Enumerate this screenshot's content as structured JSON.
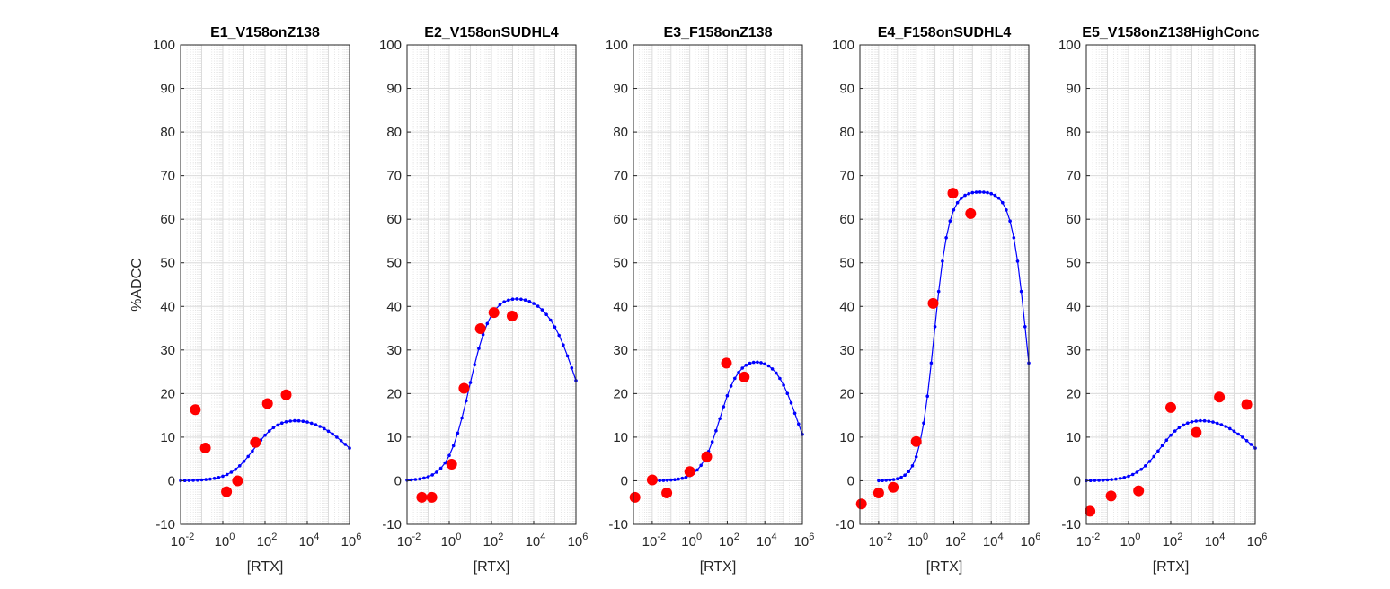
{
  "chart_data": [
    {
      "type": "scatter",
      "title": "E1_V158onZ138",
      "xlabel": "[RTX]",
      "ylabel": "%ADCC",
      "xscale": "log",
      "xlim": [
        0.01,
        1000000
      ],
      "ylim": [
        -10,
        100
      ],
      "grid": true,
      "xticks": [
        {
          "base": "10",
          "exp": "-2"
        },
        {
          "base": "10",
          "exp": "0"
        },
        {
          "base": "10",
          "exp": "2"
        },
        {
          "base": "10",
          "exp": "4"
        },
        {
          "base": "10",
          "exp": "6"
        }
      ],
      "yticks": [
        "-10",
        "0",
        "10",
        "20",
        "30",
        "40",
        "50",
        "60",
        "70",
        "80",
        "90",
        "100"
      ],
      "points": {
        "color": "#ff0000",
        "x": [
          0.05,
          0.15,
          1.5,
          5,
          35,
          130,
          1000
        ],
        "y": [
          16.3,
          7.5,
          -2.5,
          0,
          8.8,
          17.7,
          19.7
        ]
      },
      "fit": {
        "color": "#0000ff",
        "log_x_range": [
          -2,
          6
        ],
        "n": 41,
        "max": 15,
        "ec50_log": 1.5,
        "hill": 0.75,
        "ic50_log": 6,
        "hill2": 0.5
      }
    },
    {
      "type": "scatter",
      "title": "E2_V158onSUDHL4",
      "xlabel": "[RTX]",
      "ylabel": "",
      "xscale": "log",
      "xlim": [
        0.01,
        1000000
      ],
      "ylim": [
        -10,
        100
      ],
      "grid": true,
      "xticks": [
        {
          "base": "10",
          "exp": "-2"
        },
        {
          "base": "10",
          "exp": "0"
        },
        {
          "base": "10",
          "exp": "2"
        },
        {
          "base": "10",
          "exp": "4"
        },
        {
          "base": "10",
          "exp": "6"
        }
      ],
      "yticks": [
        "-10",
        "0",
        "10",
        "20",
        "30",
        "40",
        "50",
        "60",
        "70",
        "80",
        "90",
        "100"
      ],
      "points": {
        "color": "#ff0000",
        "x": [
          0.05,
          0.15,
          1.3,
          5,
          30,
          130,
          950
        ],
        "y": [
          -3.8,
          -3.8,
          3.8,
          21.2,
          34.9,
          38.6,
          37.8
        ]
      },
      "fit": {
        "color": "#0000ff",
        "log_x_range": [
          -2,
          6
        ],
        "n": 41,
        "max": 43,
        "ec50_log": 0.95,
        "hill": 0.85,
        "ic50_log": 6.1,
        "hill2": 0.6
      }
    },
    {
      "type": "scatter",
      "title": "E3_F158onZ138",
      "xlabel": "[RTX]",
      "ylabel": "",
      "xscale": "log",
      "xlim": [
        0.001,
        1000000
      ],
      "ylim": [
        -10,
        100
      ],
      "grid": true,
      "xticks": [
        {
          "base": "10",
          "exp": "-2"
        },
        {
          "base": "10",
          "exp": "0"
        },
        {
          "base": "10",
          "exp": "2"
        },
        {
          "base": "10",
          "exp": "4"
        },
        {
          "base": "10",
          "exp": "6"
        }
      ],
      "yticks": [
        "-10",
        "0",
        "10",
        "20",
        "30",
        "40",
        "50",
        "60",
        "70",
        "80",
        "90",
        "100"
      ],
      "points": {
        "color": "#ff0000",
        "x": [
          0.0012,
          0.01,
          0.06,
          1,
          8,
          90,
          800
        ],
        "y": [
          -3.8,
          0.2,
          -2.8,
          2.1,
          5.5,
          27,
          23.8
        ]
      },
      "fit": {
        "color": "#0000ff",
        "log_x_range": [
          -2,
          6
        ],
        "n": 41,
        "max": 28.5,
        "ec50_log": 1.6,
        "hill": 0.85,
        "ic50_log": 5.7,
        "hill2": 0.75
      }
    },
    {
      "type": "scatter",
      "title": "E4_F158onSUDHL4",
      "xlabel": "[RTX]",
      "ylabel": "",
      "xscale": "log",
      "xlim": [
        0.001,
        1000000
      ],
      "ylim": [
        -10,
        100
      ],
      "grid": true,
      "xticks": [
        {
          "base": "10",
          "exp": "-2"
        },
        {
          "base": "10",
          "exp": "0"
        },
        {
          "base": "10",
          "exp": "2"
        },
        {
          "base": "10",
          "exp": "4"
        },
        {
          "base": "10",
          "exp": "6"
        }
      ],
      "yticks": [
        "-10",
        "0",
        "10",
        "20",
        "30",
        "40",
        "50",
        "60",
        "70",
        "80",
        "90",
        "100"
      ],
      "points": {
        "color": "#ff0000",
        "x": [
          0.0012,
          0.01,
          0.06,
          1,
          8,
          90,
          800
        ],
        "y": [
          -5.3,
          -2.8,
          -1.5,
          9,
          40.7,
          66,
          61.3
        ]
      },
      "fit": {
        "color": "#0000ff",
        "log_x_range": [
          -2,
          6
        ],
        "n": 41,
        "max": 66.5,
        "ec50_log": 0.95,
        "hill": 1.1,
        "ic50_log": 5.85,
        "hill2": 1.1
      }
    },
    {
      "type": "scatter",
      "title": "E5_V158onZ138HighConc",
      "xlabel": "[RTX]",
      "ylabel": "",
      "xscale": "log",
      "xlim": [
        0.01,
        1000000
      ],
      "ylim": [
        -10,
        100
      ],
      "grid": true,
      "xticks": [
        {
          "base": "10",
          "exp": "-2"
        },
        {
          "base": "10",
          "exp": "0"
        },
        {
          "base": "10",
          "exp": "2"
        },
        {
          "base": "10",
          "exp": "4"
        },
        {
          "base": "10",
          "exp": "6"
        }
      ],
      "yticks": [
        "-10",
        "0",
        "10",
        "20",
        "30",
        "40",
        "50",
        "60",
        "70",
        "80",
        "90",
        "100"
      ],
      "points": {
        "color": "#ff0000",
        "x": [
          0.015,
          0.15,
          3,
          100,
          1600,
          20000,
          400000
        ],
        "y": [
          -7,
          -3.5,
          -2.3,
          16.8,
          11.1,
          19.2,
          17.5
        ]
      },
      "fit": {
        "color": "#0000ff",
        "log_x_range": [
          -2,
          6
        ],
        "n": 41,
        "max": 15,
        "ec50_log": 1.5,
        "hill": 0.75,
        "ic50_log": 6,
        "hill2": 0.5
      }
    }
  ]
}
